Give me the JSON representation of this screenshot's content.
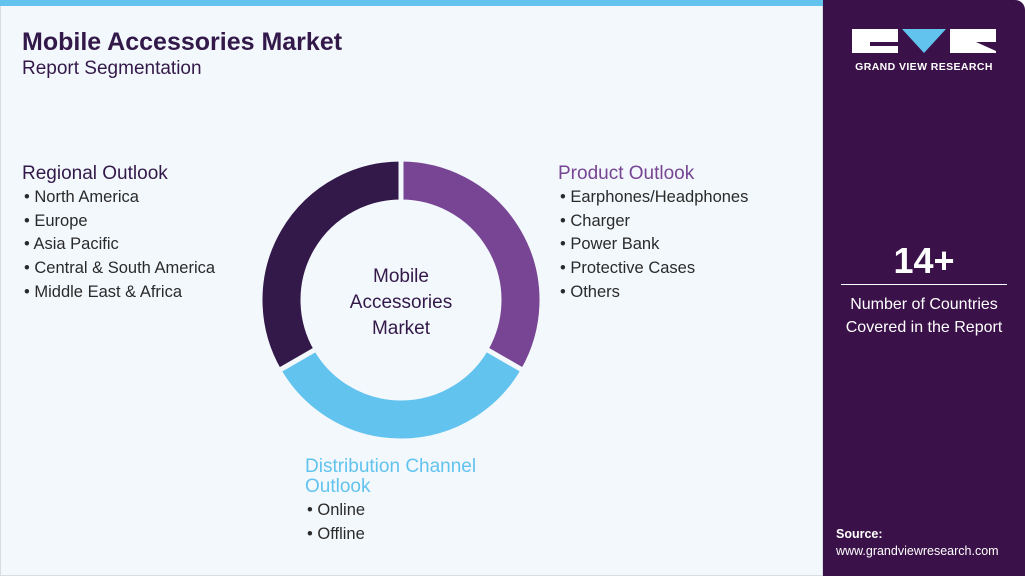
{
  "header": {
    "title": "Mobile Accessories Market",
    "subtitle": "Report Segmentation"
  },
  "center_label": [
    "Mobile",
    "Accessories",
    "Market"
  ],
  "segments": [
    {
      "title": "Product Outlook",
      "color": "#774593",
      "items": [
        "Earphones/Headphones",
        "Charger",
        "Power Bank",
        "Protective Cases",
        "Others"
      ]
    },
    {
      "title_lines": [
        "Distribution Channel",
        "Outlook"
      ],
      "color": "#62c3ef",
      "items": [
        "Online",
        "Offline"
      ]
    },
    {
      "title": "Regional Outlook",
      "color": "#33194a",
      "items": [
        "North America",
        "Europe",
        "Asia Pacific",
        "Central & South America",
        "Middle East & Africa"
      ]
    }
  ],
  "brand": {
    "name": "GRAND VIEW RESEARCH"
  },
  "stat": {
    "value": "14+",
    "label_lines": [
      "Number of Countries",
      "Covered in the Report"
    ]
  },
  "source": {
    "label": "Source:",
    "url": "www.grandviewresearch.com"
  }
}
